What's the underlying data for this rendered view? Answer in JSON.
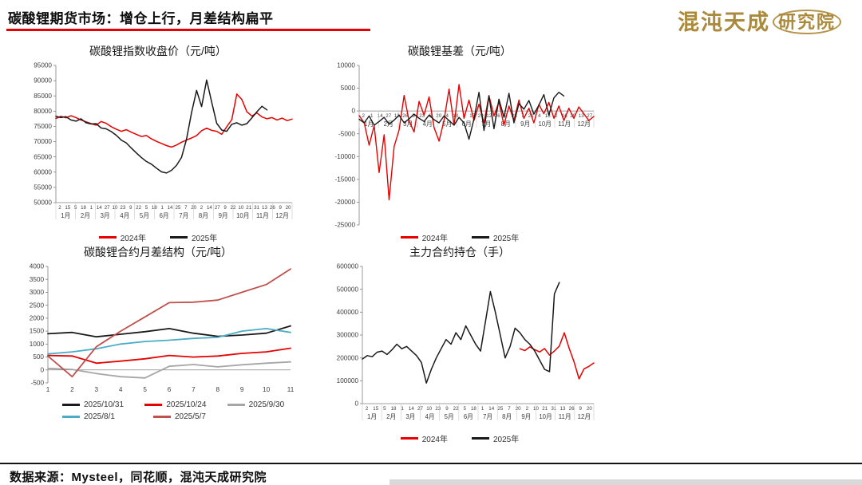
{
  "header": {
    "title": "碳酸锂期货市场：增仓上行，月差结构扁平",
    "accent_color": "#e60000",
    "logo_main": "混沌天成",
    "logo_sub": "研究院",
    "logo_color": "#ab8a3c"
  },
  "footer": {
    "source": "数据来源：Mysteel，同花顺，混沌天成研究院"
  },
  "chart_data": [
    {
      "type": "line",
      "title": "碳酸锂指数收盘价（元/吨）",
      "ylim": [
        50000,
        95000
      ],
      "ystep": 5000,
      "legend_position": "bottom",
      "x_axis": {
        "style": "month-days",
        "days": [
          "2",
          "15",
          "5",
          "18",
          "1",
          "14",
          "27",
          "10",
          "23",
          "9",
          "22",
          "5",
          "18",
          "1",
          "14",
          "25",
          "7",
          "20",
          "2",
          "14",
          "27",
          "9",
          "22",
          "10",
          "21",
          "31",
          "13",
          "26",
          "9",
          "20"
        ],
        "months": [
          "1月",
          "2月",
          "3月",
          "4月",
          "5月",
          "6月",
          "7月",
          "8月",
          "9月",
          "10月",
          "11月",
          "12月"
        ]
      },
      "series": [
        {
          "name": "2024年",
          "color": "#e60000",
          "values": [
            77600,
            78300,
            77800,
            78500,
            77900,
            77100,
            76500,
            75900,
            75400,
            76600,
            76000,
            74900,
            74100,
            73400,
            73900,
            73100,
            72400,
            71700,
            72000,
            70900,
            70100,
            69400,
            68700,
            68200,
            68900,
            69800,
            70500,
            71200,
            72000,
            73600,
            74400,
            73700,
            73400,
            72400,
            74900,
            77200,
            85600,
            83800,
            79800,
            78400,
            79400,
            78100,
            77500,
            77900,
            77100,
            77700,
            76900,
            77400
          ]
        },
        {
          "name": "2025年",
          "color": "#1a1a1a",
          "values": [
            78300,
            77900,
            78200,
            77100,
            76700,
            77500,
            76200,
            75800,
            75900,
            74500,
            74200,
            73300,
            72100,
            70500,
            69600,
            67900,
            66300,
            64800,
            63500,
            62600,
            61300,
            60100,
            59700,
            60600,
            62200,
            64800,
            70800,
            79500,
            86800,
            81500,
            90200,
            83000,
            76000,
            73800,
            73400,
            75700,
            76200,
            75400,
            75900,
            77800,
            79800,
            81600,
            80400,
            null,
            null,
            null,
            null,
            null
          ]
        }
      ]
    },
    {
      "type": "line",
      "title": "碳酸锂基差（元/吨）",
      "ylim": [
        -25000,
        10000
      ],
      "ystep": 5000,
      "labels_at_zero": true,
      "legend_position": "bottom",
      "x_axis": {
        "style": "month-days",
        "days": [
          "2",
          "1",
          "14",
          "27",
          "12",
          "26",
          "9",
          "23",
          "6",
          "20",
          "4",
          "18",
          "1",
          "15",
          "29",
          "12",
          "26",
          "9",
          "23",
          "7",
          "21",
          "4",
          "18",
          "2",
          "16",
          "29",
          "13",
          "27"
        ],
        "months": [
          "1月",
          "2月",
          "3月",
          "4月",
          "5月",
          "6月",
          "7月",
          "8月",
          "9月",
          "10月",
          "11月",
          "12月"
        ]
      },
      "series": [
        {
          "name": "2024年",
          "color": "#e60000",
          "values": [
            -1000,
            -2600,
            -7500,
            -3200,
            -13500,
            -5200,
            -19500,
            -7800,
            -4200,
            3400,
            -2200,
            -4600,
            2100,
            -900,
            3100,
            -3600,
            -6600,
            -2100,
            4800,
            -3100,
            5800,
            -1600,
            2400,
            -2100,
            1500,
            -2600,
            3400,
            -1100,
            2000,
            -3100,
            1100,
            -2100,
            2400,
            -1600,
            600,
            -2600,
            1400,
            -600,
            1900,
            -1600,
            1100,
            -2100,
            600,
            -1600,
            900,
            -600,
            -2100,
            -1200
          ]
        },
        {
          "name": "2025年",
          "color": "#1a1a1a",
          "values": [
            -1800,
            -2600,
            -1100,
            -3100,
            -2300,
            -1400,
            -2900,
            -2000,
            -900,
            -2600,
            -1700,
            -700,
            -1600,
            -2300,
            -900,
            -1900,
            -2600,
            -1100,
            -2100,
            -3100,
            -1400,
            -2600,
            -6200,
            -1700,
            4100,
            -4300,
            3300,
            -3900,
            2600,
            -1400,
            3900,
            -2600,
            1600,
            400,
            2300,
            -700,
            1300,
            3600,
            -900,
            2900,
            4100,
            3300,
            null,
            null,
            null,
            null,
            null,
            null
          ]
        }
      ]
    },
    {
      "type": "line",
      "title": "碳酸锂合约月差结构（元/吨）",
      "ylim": [
        -500,
        4000
      ],
      "ystep": 500,
      "legend_position": "bottom-two-rows",
      "x_axis": {
        "style": "numeric",
        "categories": [
          1,
          2,
          3,
          4,
          5,
          6,
          7,
          8,
          9,
          10,
          11
        ]
      },
      "series": [
        {
          "name": "2025/10/31",
          "color": "#1a1a1a",
          "values": [
            1400,
            1450,
            1280,
            1380,
            1480,
            1600,
            1420,
            1300,
            1350,
            1420,
            1700
          ]
        },
        {
          "name": "2025/10/24",
          "color": "#e60000",
          "values": [
            560,
            540,
            260,
            340,
            430,
            560,
            500,
            540,
            640,
            700,
            840
          ]
        },
        {
          "name": "2025/9/30",
          "color": "#a6a6a6",
          "values": [
            60,
            20,
            -140,
            -260,
            -310,
            140,
            210,
            120,
            200,
            260,
            310
          ]
        },
        {
          "name": "2025/8/1",
          "color": "#4bacc6",
          "values": [
            620,
            700,
            820,
            1000,
            1100,
            1150,
            1220,
            1260,
            1500,
            1600,
            1450
          ]
        },
        {
          "name": "2025/5/7",
          "color": "#c0504d",
          "values": [
            540,
            -260,
            900,
            1500,
            2050,
            2600,
            2620,
            2700,
            3000,
            3300,
            3900
          ]
        }
      ]
    },
    {
      "type": "line",
      "title": "主力合约持仓（手）",
      "ylim": [
        0,
        600000
      ],
      "ystep": 100000,
      "legend_position": "bottom",
      "x_axis": {
        "style": "month-days",
        "days": [
          "2",
          "15",
          "5",
          "18",
          "1",
          "14",
          "27",
          "10",
          "23",
          "9",
          "22",
          "5",
          "18",
          "1",
          "14",
          "25",
          "7",
          "20",
          "2",
          "10",
          "21",
          "31",
          "13",
          "26",
          "9",
          "20"
        ],
        "months": [
          "1月",
          "2月",
          "3月",
          "4月",
          "5月",
          "6月",
          "7月",
          "8月",
          "9月",
          "10月",
          "11月",
          "12月"
        ]
      },
      "series": [
        {
          "name": "2024年",
          "color": "#e60000",
          "values": [
            null,
            null,
            null,
            null,
            null,
            null,
            null,
            null,
            null,
            null,
            null,
            null,
            null,
            null,
            null,
            null,
            null,
            null,
            null,
            null,
            null,
            null,
            null,
            null,
            null,
            null,
            null,
            null,
            null,
            null,
            null,
            null,
            240000,
            232000,
            248000,
            236000,
            226000,
            241000,
            212000,
            230000,
            252000,
            310000,
            242000,
            182000,
            108000,
            152000,
            163000,
            178000
          ]
        },
        {
          "name": "2025年",
          "color": "#1a1a1a",
          "values": [
            195000,
            210000,
            205000,
            225000,
            230000,
            215000,
            235000,
            260000,
            240000,
            250000,
            230000,
            210000,
            180000,
            90000,
            150000,
            200000,
            240000,
            280000,
            260000,
            310000,
            280000,
            340000,
            300000,
            260000,
            230000,
            360000,
            490000,
            400000,
            300000,
            200000,
            250000,
            330000,
            310000,
            280000,
            260000,
            230000,
            190000,
            150000,
            140000,
            480000,
            530000,
            null,
            null,
            null,
            null,
            null,
            null,
            null
          ]
        }
      ]
    }
  ]
}
